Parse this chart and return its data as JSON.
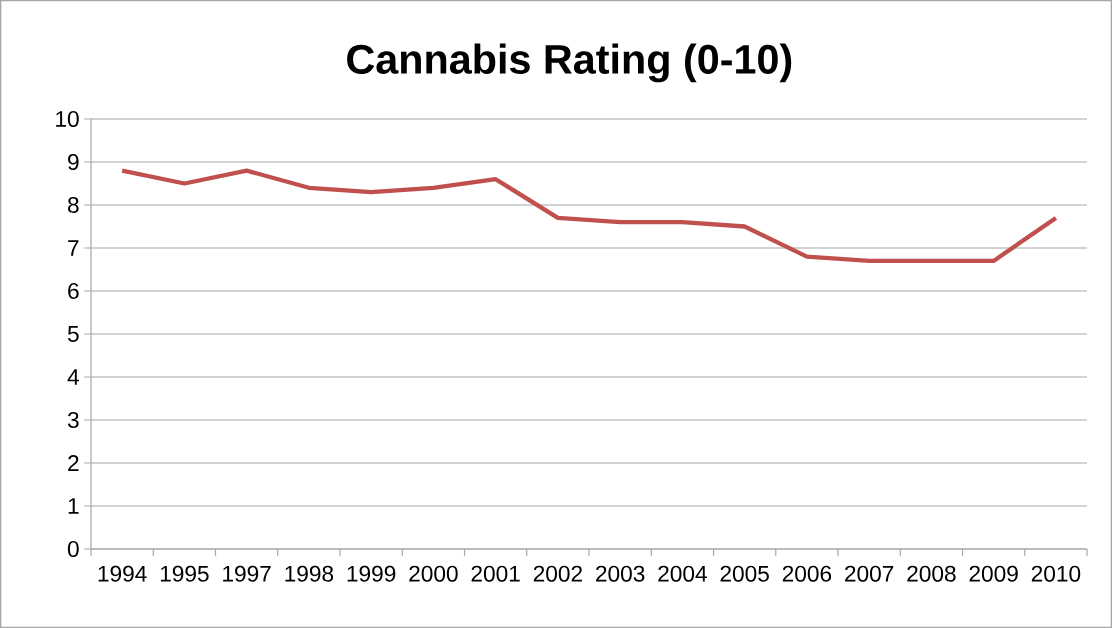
{
  "chart_data": {
    "type": "line",
    "title": "Cannabis Rating (0-10)",
    "categories": [
      "1994",
      "1995",
      "1997",
      "1998",
      "1999",
      "2000",
      "2001",
      "2002",
      "2003",
      "2004",
      "2005",
      "2006",
      "2007",
      "2008",
      "2009",
      "2010"
    ],
    "values": [
      8.8,
      8.5,
      8.8,
      8.4,
      8.3,
      8.4,
      8.6,
      7.7,
      7.6,
      7.6,
      7.5,
      6.8,
      6.7,
      6.7,
      6.7,
      7.7
    ],
    "color": "#c0504d",
    "ylim": [
      0,
      10
    ],
    "yticks": [
      0,
      1,
      2,
      3,
      4,
      5,
      6,
      7,
      8,
      9,
      10
    ],
    "grid": "y",
    "marker": "none",
    "line_style": "solid"
  }
}
